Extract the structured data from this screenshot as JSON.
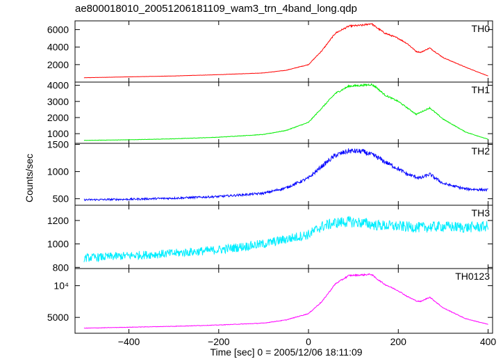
{
  "title": "ae800018010_20051206181109_wam3_trn_4band_long.qdp",
  "xlabel": "Time [sec] 0 = 2005/12/06 18:11:09",
  "ylabel": "Counts/sec",
  "x_ticks": [
    "−400",
    "−200",
    "0",
    "200",
    "400"
  ],
  "chart_data": [
    {
      "type": "line",
      "name": "TH0",
      "color": "#ff0000",
      "xlim": [
        -520,
        410
      ],
      "ylim": [
        0,
        7000
      ],
      "yticks": [
        2000,
        4000,
        6000
      ],
      "ytick_labels": [
        "2000",
        "4000",
        "6000"
      ],
      "x": [
        -500,
        -400,
        -300,
        -200,
        -100,
        -50,
        0,
        30,
        60,
        90,
        120,
        140,
        150,
        170,
        200,
        220,
        240,
        250,
        270,
        300,
        350,
        400
      ],
      "y": [
        500,
        600,
        700,
        850,
        1050,
        1350,
        2000,
        3600,
        5600,
        6400,
        6500,
        6700,
        6300,
        5600,
        5000,
        4400,
        3500,
        3400,
        3900,
        2800,
        1700,
        700
      ]
    },
    {
      "type": "line",
      "name": "TH1",
      "color": "#00ee00",
      "xlim": [
        -520,
        410
      ],
      "ylim": [
        400,
        4200
      ],
      "yticks": [
        1000,
        2000,
        3000,
        4000
      ],
      "ytick_labels": [
        "1000",
        "2000",
        "3000",
        "4000"
      ],
      "x": [
        -500,
        -400,
        -300,
        -200,
        -100,
        -50,
        0,
        30,
        60,
        90,
        120,
        140,
        150,
        170,
        200,
        220,
        240,
        270,
        300,
        350,
        400
      ],
      "y": [
        580,
        620,
        680,
        780,
        950,
        1200,
        1700,
        2600,
        3500,
        3950,
        4000,
        4050,
        3900,
        3400,
        3000,
        2600,
        2200,
        2600,
        1900,
        1100,
        650
      ]
    },
    {
      "type": "line",
      "name": "TH2",
      "color": "#0000ff",
      "xlim": [
        -520,
        410
      ],
      "ylim": [
        380,
        1520
      ],
      "yticks": [
        500,
        1000,
        1500
      ],
      "ytick_labels": [
        "500",
        "1000",
        "1500"
      ],
      "x": [
        -500,
        -400,
        -300,
        -200,
        -100,
        -50,
        0,
        30,
        60,
        90,
        120,
        150,
        170,
        200,
        220,
        240,
        250,
        270,
        300,
        350,
        400
      ],
      "y": [
        480,
        490,
        510,
        540,
        600,
        700,
        880,
        1100,
        1300,
        1380,
        1370,
        1280,
        1180,
        1050,
        950,
        900,
        880,
        950,
        780,
        680,
        660
      ]
    },
    {
      "type": "line",
      "name": "TH3",
      "color": "#00eeff",
      "xlim": [
        -520,
        410
      ],
      "ylim": [
        790,
        1330
      ],
      "yticks": [
        800,
        1000,
        1200
      ],
      "ytick_labels": [
        "800",
        "1000",
        "1200"
      ],
      "x": [
        -500,
        -400,
        -300,
        -200,
        -100,
        -50,
        0,
        30,
        60,
        90,
        120,
        150,
        200,
        250,
        300,
        350,
        400
      ],
      "y": [
        880,
        900,
        920,
        950,
        1000,
        1040,
        1080,
        1150,
        1180,
        1190,
        1180,
        1160,
        1150,
        1140,
        1150,
        1140,
        1150
      ]
    },
    {
      "type": "line",
      "name": "TH0123",
      "color": "#ff00ff",
      "xlim": [
        -520,
        410
      ],
      "ylim": [
        2500,
        12700
      ],
      "yticks": [
        5000,
        10000
      ],
      "ytick_labels": [
        "5000",
        "10⁴"
      ],
      "x": [
        -500,
        -400,
        -300,
        -200,
        -100,
        -50,
        0,
        30,
        60,
        90,
        120,
        140,
        150,
        170,
        200,
        220,
        240,
        250,
        270,
        300,
        350,
        400
      ],
      "y": [
        3300,
        3450,
        3600,
        3800,
        4100,
        4600,
        5600,
        7500,
        10300,
        11600,
        11700,
        11800,
        11200,
        10200,
        9200,
        8300,
        7600,
        7500,
        8200,
        6500,
        4800,
        3900
      ]
    }
  ]
}
